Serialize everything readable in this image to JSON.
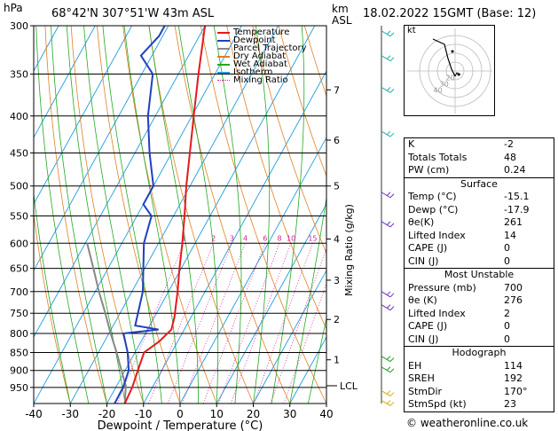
{
  "header": {
    "hpa_label": "hPa",
    "location": "68°42'N  307°51'W  43m  ASL",
    "km_label": "km",
    "asl_label": "ASL",
    "datetime": "18.02.2022  15GMT  (Base: 12)"
  },
  "legend": [
    {
      "label": "Temperature",
      "color": "#e41a1c"
    },
    {
      "label": "Dewpoint",
      "color": "#2040c0"
    },
    {
      "label": "Parcel Trajectory",
      "color": "#888888"
    },
    {
      "label": "Dry Adiabat",
      "color": "#e08020"
    },
    {
      "label": "Wet Adiabat",
      "color": "#22aa22"
    },
    {
      "label": "Isotherm",
      "color": "#1e9be0"
    },
    {
      "label": "Mixing Ratio",
      "color": "#d020a0"
    }
  ],
  "footer": "© weatheronline.co.uk",
  "chart_data": {
    "type": "line",
    "xlabel": "Dewpoint / Temperature (°C)",
    "ylabel_right": "Mixing Ratio (g/kg)",
    "x_ticks": [
      -40,
      -30,
      -20,
      -10,
      0,
      10,
      20,
      30,
      40
    ],
    "y_ticks_hpa": [
      300,
      350,
      400,
      450,
      500,
      550,
      600,
      650,
      700,
      750,
      800,
      850,
      900,
      950
    ],
    "km_ticks": [
      {
        "label": "1",
        "p": 870
      },
      {
        "label": "2",
        "p": 765
      },
      {
        "label": "3",
        "p": 675
      },
      {
        "label": "4",
        "p": 592
      },
      {
        "label": "5",
        "p": 500
      },
      {
        "label": "6",
        "p": 432
      },
      {
        "label": "7",
        "p": 368
      }
    ],
    "lcl": {
      "label": "LCL",
      "p": 945
    },
    "mixing_ratio_labels": [
      "1",
      "2",
      "3",
      "4",
      "6",
      "8",
      "10",
      "15",
      "20",
      "25"
    ],
    "mixing_ratio_values": [
      1,
      2,
      3,
      4,
      6,
      8,
      10,
      15,
      20,
      25
    ],
    "temperature": [
      {
        "p": 1000,
        "t": -15.1
      },
      {
        "p": 950,
        "t": -15.5
      },
      {
        "p": 900,
        "t": -16.5
      },
      {
        "p": 850,
        "t": -17.5
      },
      {
        "p": 820,
        "t": -15.0
      },
      {
        "p": 790,
        "t": -13.5
      },
      {
        "p": 760,
        "t": -14.5
      },
      {
        "p": 700,
        "t": -17.5
      },
      {
        "p": 650,
        "t": -20.5
      },
      {
        "p": 600,
        "t": -23.5
      },
      {
        "p": 550,
        "t": -27.0
      },
      {
        "p": 500,
        "t": -31.0
      },
      {
        "p": 450,
        "t": -35.0
      },
      {
        "p": 400,
        "t": -39.5
      },
      {
        "p": 350,
        "t": -44.5
      },
      {
        "p": 300,
        "t": -50.0
      }
    ],
    "dewpoint": [
      {
        "p": 1000,
        "t": -17.9
      },
      {
        "p": 950,
        "t": -18.0
      },
      {
        "p": 900,
        "t": -19.0
      },
      {
        "p": 850,
        "t": -22.0
      },
      {
        "p": 800,
        "t": -26.0
      },
      {
        "p": 790,
        "t": -17.0
      },
      {
        "p": 780,
        "t": -24.0
      },
      {
        "p": 700,
        "t": -27.0
      },
      {
        "p": 600,
        "t": -34.0
      },
      {
        "p": 550,
        "t": -36.0
      },
      {
        "p": 530,
        "t": -40.0
      },
      {
        "p": 500,
        "t": -40.0
      },
      {
        "p": 450,
        "t": -46.0
      },
      {
        "p": 400,
        "t": -52.0
      },
      {
        "p": 350,
        "t": -57.0
      },
      {
        "p": 330,
        "t": -63.0
      },
      {
        "p": 310,
        "t": -61.0
      },
      {
        "p": 300,
        "t": -61.0
      }
    ],
    "parcel": [
      {
        "p": 1000,
        "t": -15.1
      },
      {
        "p": 945,
        "t": -17.5
      },
      {
        "p": 900,
        "t": -21.0
      },
      {
        "p": 850,
        "t": -25.0
      },
      {
        "p": 800,
        "t": -29.5
      },
      {
        "p": 750,
        "t": -34.0
      },
      {
        "p": 700,
        "t": -39.0
      },
      {
        "p": 650,
        "t": -44.0
      },
      {
        "p": 600,
        "t": -49.5
      }
    ]
  },
  "indices": {
    "rows1": [
      {
        "label": "K",
        "value": "-2"
      },
      {
        "label": "Totals Totals",
        "value": "48"
      },
      {
        "label": "PW (cm)",
        "value": "0.24"
      }
    ],
    "surface_title": "Surface",
    "surface": [
      {
        "label": "Temp (°C)",
        "value": "-15.1"
      },
      {
        "label": "Dewp (°C)",
        "value": "-17.9"
      },
      {
        "label": "θe(K)",
        "value": "261"
      },
      {
        "label": "Lifted Index",
        "value": "14"
      },
      {
        "label": "CAPE (J)",
        "value": "0"
      },
      {
        "label": "CIN (J)",
        "value": "0"
      }
    ],
    "unstable_title": "Most Unstable",
    "unstable": [
      {
        "label": "Pressure (mb)",
        "value": "700"
      },
      {
        "label": "θe (K)",
        "value": "276"
      },
      {
        "label": "Lifted Index",
        "value": "2"
      },
      {
        "label": "CAPE (J)",
        "value": "0"
      },
      {
        "label": "CIN (J)",
        "value": "0"
      }
    ],
    "hodograph_title": "Hodograph",
    "hodograph": [
      {
        "label": "EH",
        "value": "114"
      },
      {
        "label": "SREH",
        "value": "192"
      },
      {
        "label": "StmDir",
        "value": "170°"
      },
      {
        "label": "StmSpd (kt)",
        "value": "23"
      }
    ]
  },
  "hodo": {
    "kt_label": "kt",
    "ring_labels": [
      "40",
      "30",
      "20"
    ]
  }
}
